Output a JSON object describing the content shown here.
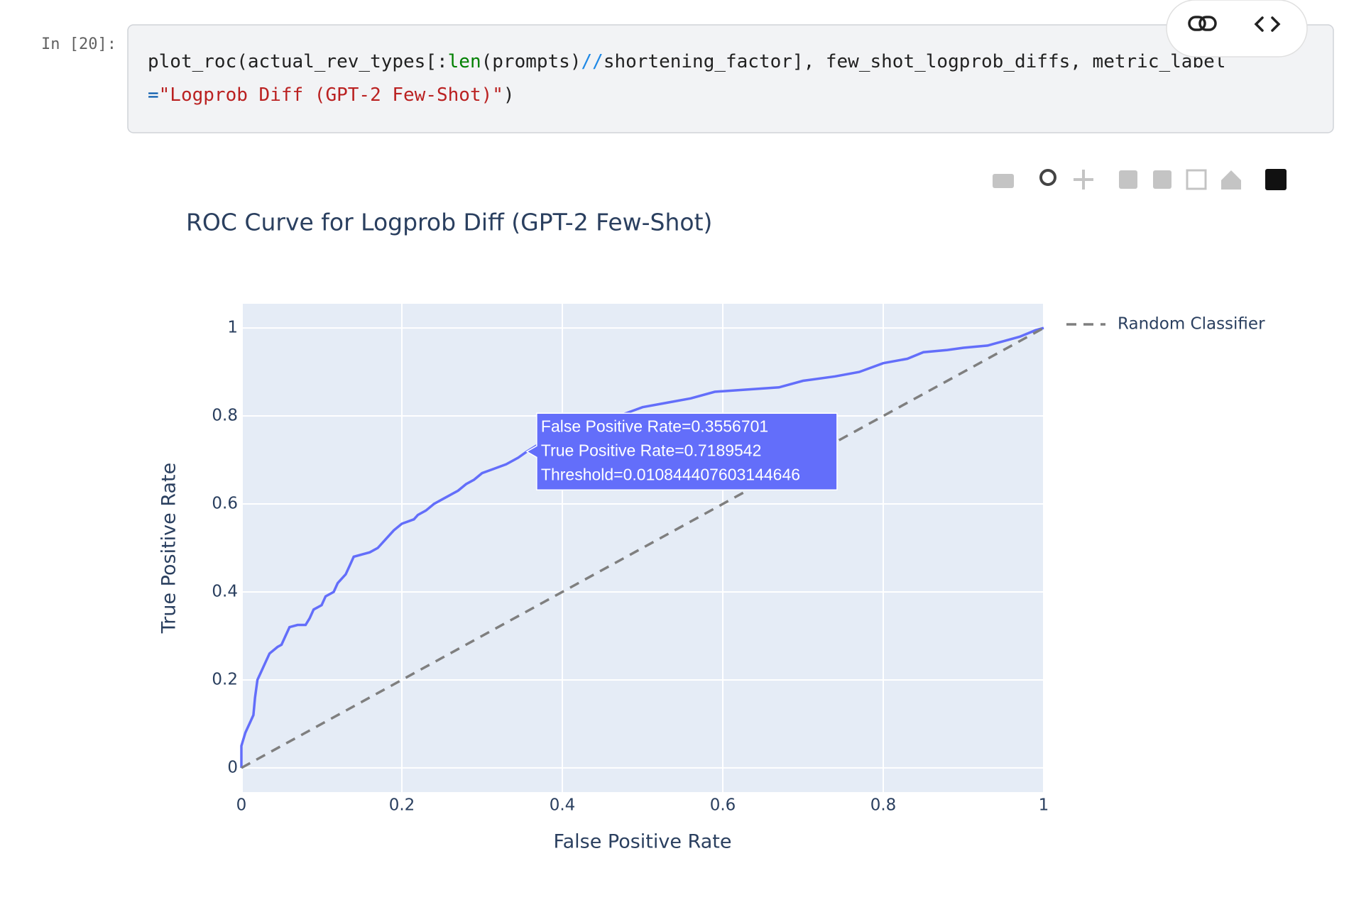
{
  "cell": {
    "prompt": "In [20]:",
    "code_tokens": [
      "plot_roc(actual_rev_types[:",
      "len",
      "(prompts)",
      "//",
      "shortening_factor], few_shot_logprob_diffs, metric_label",
      "=",
      "\"Logprob Diff (GPT-2 Few-Shot)\"",
      ")"
    ]
  },
  "chart_data": {
    "type": "line",
    "title": "ROC Curve for Logprob Diff (GPT-2 Few-Shot)",
    "x_label": "False Positive Rate",
    "y_label": "True Positive Rate",
    "xlim": [
      0,
      1
    ],
    "ylim": [
      -0.055,
      1.055
    ],
    "xticks": [
      0,
      0.2,
      0.4,
      0.6,
      0.8,
      1
    ],
    "yticks": [
      0,
      0.2,
      0.4,
      0.6,
      0.8,
      1
    ],
    "grid": true,
    "legend_position": "right",
    "series": [
      {
        "color": "#636efa",
        "x": [
          0,
          0,
          0.005,
          0.01,
          0.015,
          0.017,
          0.02,
          0.025,
          0.03,
          0.035,
          0.045,
          0.05,
          0.055,
          0.06,
          0.07,
          0.08,
          0.085,
          0.09,
          0.1,
          0.105,
          0.115,
          0.12,
          0.13,
          0.135,
          0.14,
          0.16,
          0.17,
          0.18,
          0.19,
          0.2,
          0.215,
          0.22,
          0.23,
          0.24,
          0.255,
          0.27,
          0.28,
          0.29,
          0.3,
          0.315,
          0.33,
          0.345,
          0.3556701,
          0.37,
          0.39,
          0.41,
          0.43,
          0.45,
          0.47,
          0.5,
          0.53,
          0.56,
          0.59,
          0.63,
          0.67,
          0.7,
          0.74,
          0.77,
          0.8,
          0.83,
          0.85,
          0.88,
          0.9,
          0.93,
          0.95,
          0.97,
          0.99,
          1
        ],
        "values": [
          0,
          0.05,
          0.08,
          0.1,
          0.12,
          0.16,
          0.2,
          0.22,
          0.24,
          0.26,
          0.275,
          0.28,
          0.3,
          0.32,
          0.325,
          0.325,
          0.34,
          0.36,
          0.37,
          0.39,
          0.4,
          0.42,
          0.44,
          0.46,
          0.48,
          0.49,
          0.5,
          0.52,
          0.54,
          0.555,
          0.565,
          0.575,
          0.585,
          0.6,
          0.615,
          0.63,
          0.645,
          0.655,
          0.67,
          0.68,
          0.69,
          0.705,
          0.7189542,
          0.735,
          0.75,
          0.765,
          0.775,
          0.78,
          0.8,
          0.82,
          0.83,
          0.84,
          0.855,
          0.86,
          0.865,
          0.88,
          0.89,
          0.9,
          0.92,
          0.93,
          0.945,
          0.95,
          0.955,
          0.96,
          0.97,
          0.98,
          0.995,
          1
        ]
      },
      {
        "name": "Random Classifier",
        "color": "#7f7f7f",
        "dash": "dash",
        "x": [
          0,
          1
        ],
        "values": [
          0,
          1
        ]
      }
    ],
    "hover": {
      "x": 0.3556701,
      "y": 0.7189542,
      "color": "#636efa",
      "lines": [
        "False Positive Rate=0.3556701",
        "True Positive Rate=0.7189542",
        "Threshold=0.010844407603144646"
      ]
    }
  }
}
